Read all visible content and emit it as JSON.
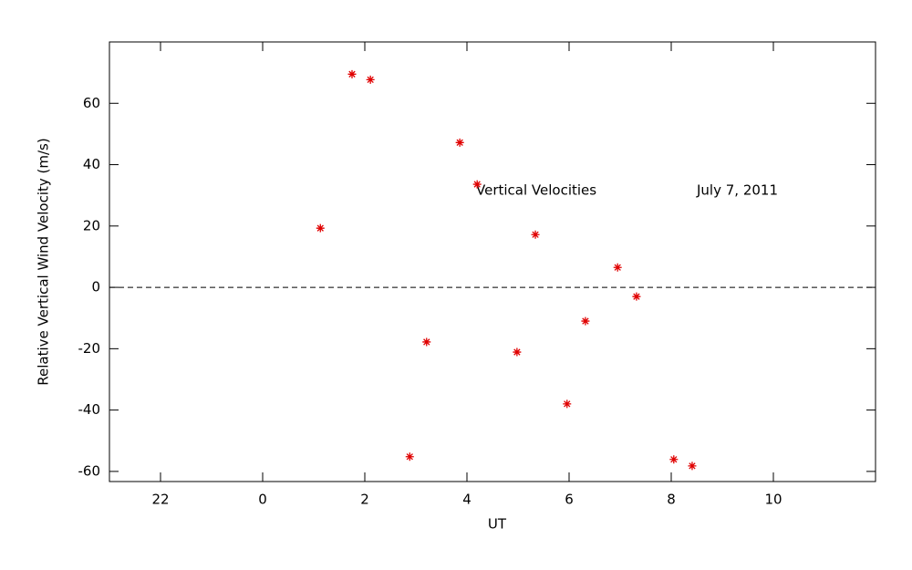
{
  "chart_data": {
    "type": "scatter",
    "xlabel": "UT",
    "ylabel": "Relative Vertical Wind Velocity (m/s)",
    "annotations": [
      "Vertical Velocities",
      "July 7, 2011"
    ],
    "xlim": [
      -3,
      12
    ],
    "xticks": [
      {
        "value": -2,
        "label": "22"
      },
      0,
      2,
      4,
      6,
      8,
      10
    ],
    "ylim": [
      -63.3,
      80
    ],
    "yticks": [
      -60,
      -40,
      -20,
      0,
      20,
      40,
      60
    ],
    "hline": 0,
    "color": "#e00000",
    "series": [
      {
        "x": [
          1.13,
          1.75,
          2.11,
          2.88,
          3.21,
          3.86,
          4.2,
          4.98,
          5.34,
          5.96,
          6.32,
          6.95,
          7.32,
          8.05,
          8.41
        ],
        "values": [
          19.3,
          69.5,
          67.7,
          -55.2,
          -17.8,
          47.2,
          33.6,
          -21.1,
          17.2,
          -38.0,
          -11.0,
          6.5,
          -3.0,
          -56.1,
          -58.2
        ]
      }
    ]
  }
}
